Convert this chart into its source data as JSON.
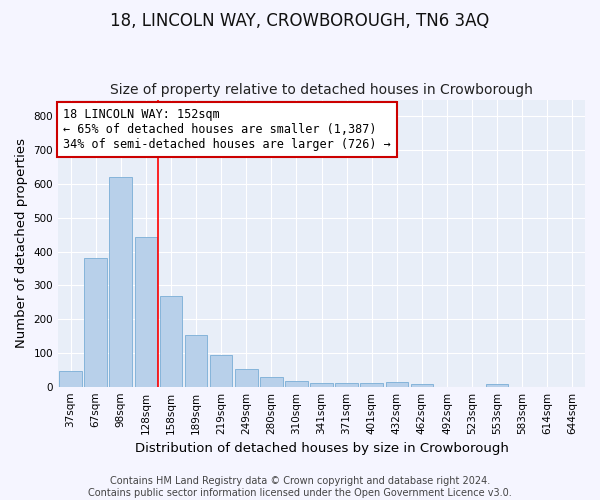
{
  "title": "18, LINCOLN WAY, CROWBOROUGH, TN6 3AQ",
  "subtitle": "Size of property relative to detached houses in Crowborough",
  "xlabel": "Distribution of detached houses by size in Crowborough",
  "ylabel": "Number of detached properties",
  "categories": [
    "37sqm",
    "67sqm",
    "98sqm",
    "128sqm",
    "158sqm",
    "189sqm",
    "219sqm",
    "249sqm",
    "280sqm",
    "310sqm",
    "341sqm",
    "371sqm",
    "401sqm",
    "432sqm",
    "462sqm",
    "492sqm",
    "523sqm",
    "553sqm",
    "583sqm",
    "614sqm",
    "644sqm"
  ],
  "values": [
    45,
    382,
    621,
    443,
    268,
    152,
    95,
    52,
    28,
    17,
    10,
    10,
    10,
    13,
    7,
    0,
    0,
    8,
    0,
    0,
    0
  ],
  "bar_color": "#b8d0ea",
  "bar_edge_color": "#7aaed6",
  "red_line_index": 3.5,
  "annotation_text": "18 LINCOLN WAY: 152sqm\n← 65% of detached houses are smaller (1,387)\n34% of semi-detached houses are larger (726) →",
  "annotation_box_color": "#ffffff",
  "annotation_box_edge_color": "#cc0000",
  "background_color": "#e8eef8",
  "fig_background_color": "#f5f5ff",
  "grid_color": "#ffffff",
  "ylim": [
    0,
    850
  ],
  "yticks": [
    0,
    100,
    200,
    300,
    400,
    500,
    600,
    700,
    800
  ],
  "title_fontsize": 12,
  "subtitle_fontsize": 10,
  "axis_label_fontsize": 9.5,
  "tick_fontsize": 7.5,
  "annotation_fontsize": 8.5,
  "footer": "Contains HM Land Registry data © Crown copyright and database right 2024.\nContains public sector information licensed under the Open Government Licence v3.0."
}
